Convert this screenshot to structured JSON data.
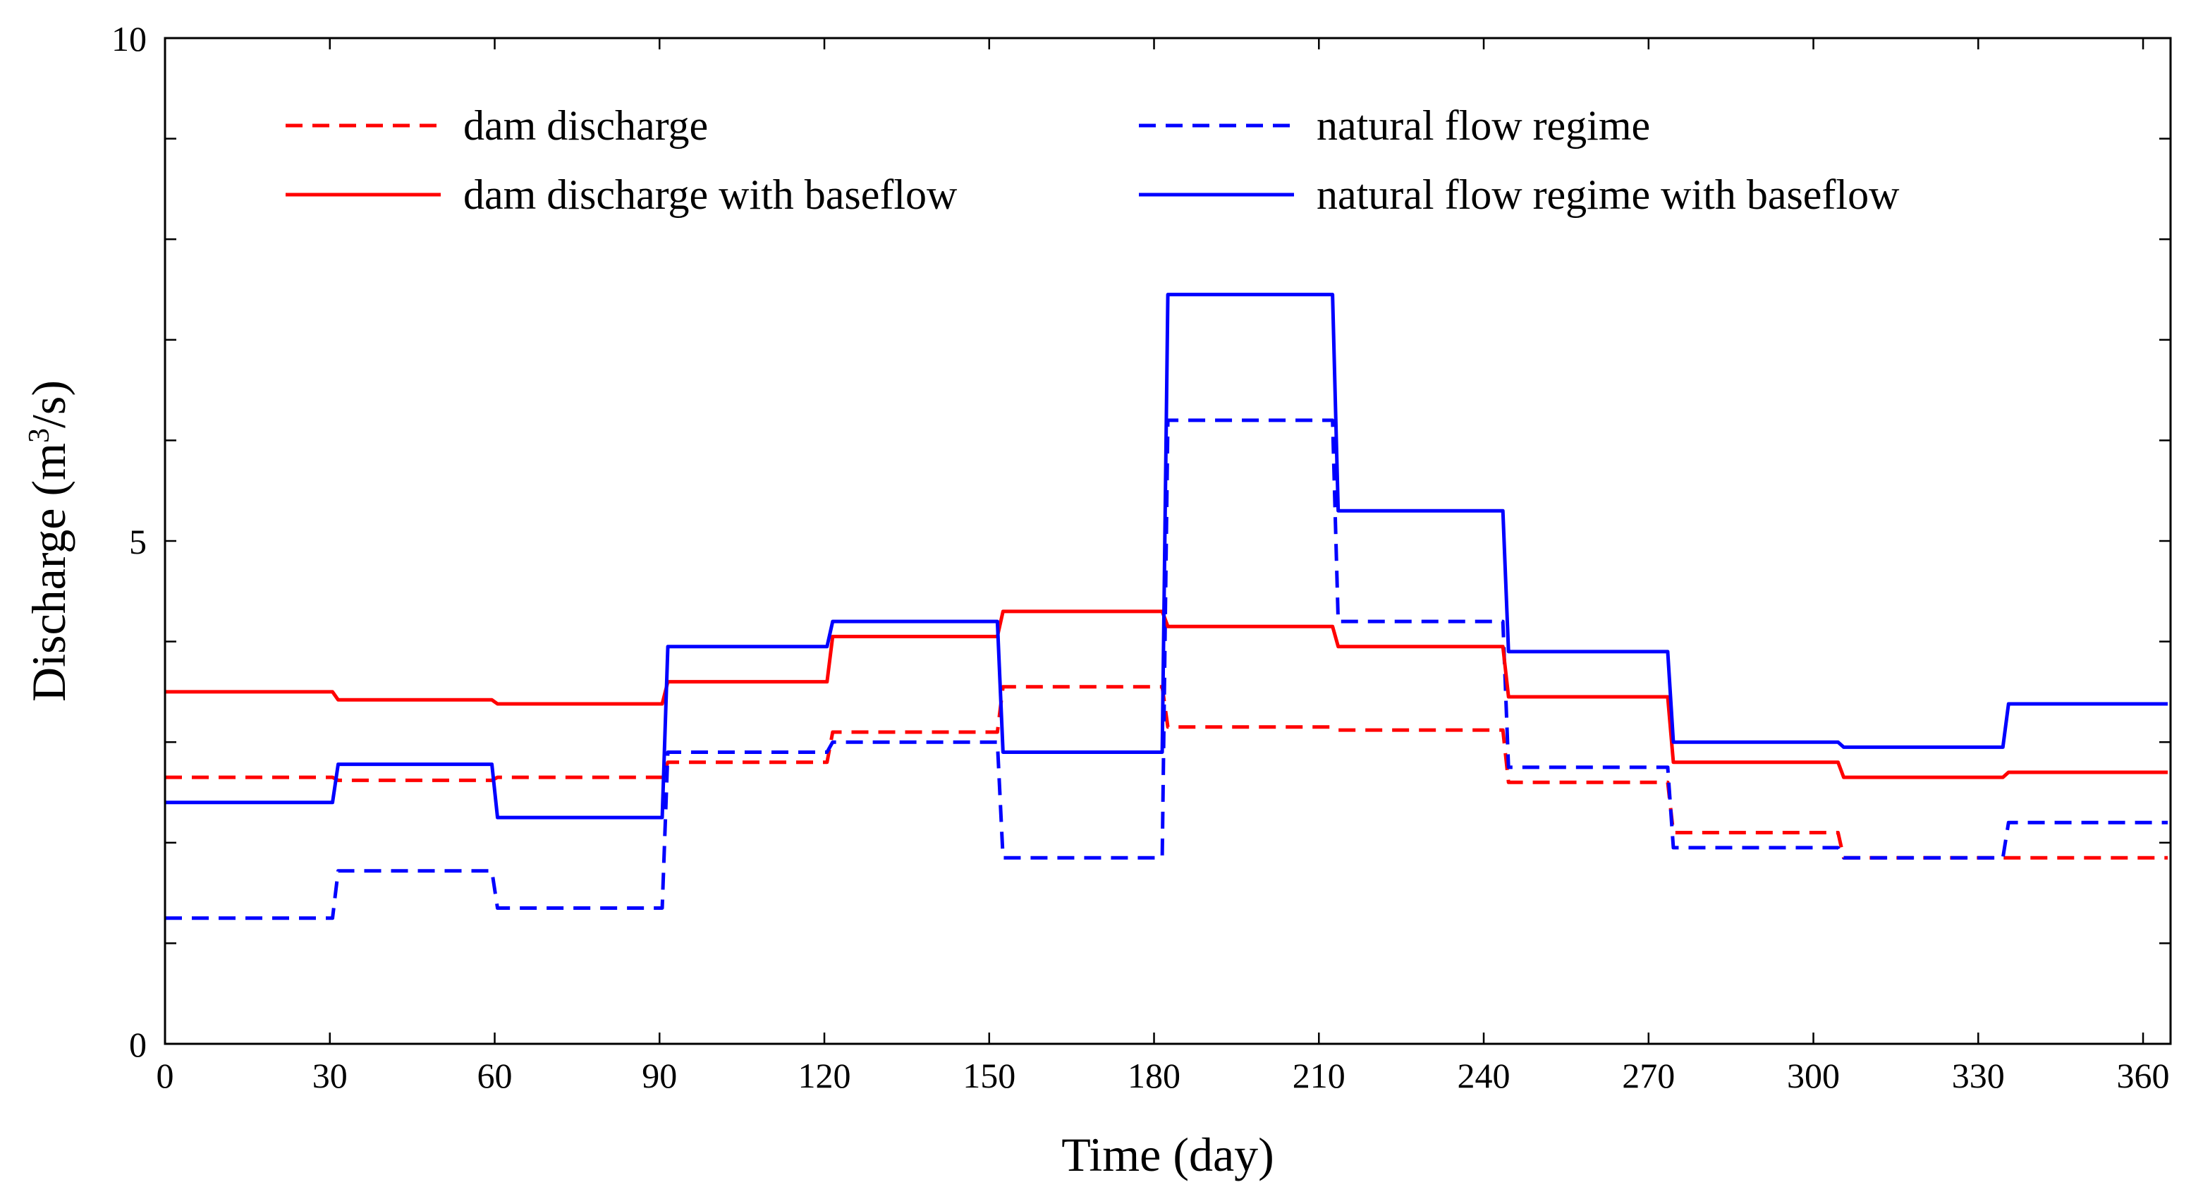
{
  "chart_data": {
    "type": "line",
    "title": "",
    "xlabel": "Time (day)",
    "ylabel_main": "Discharge (m",
    "ylabel_sup": "3",
    "ylabel_tail": "/s)",
    "xlim": [
      0,
      365
    ],
    "ylim": [
      0,
      10
    ],
    "xticks": [
      0,
      30,
      60,
      90,
      120,
      150,
      180,
      210,
      240,
      270,
      300,
      330,
      360
    ],
    "xtick_labels": [
      "0",
      "30",
      "60",
      "90",
      "120",
      "150",
      "180",
      "210",
      "240",
      "270",
      "300",
      "330",
      "360"
    ],
    "yticks": [
      0,
      5,
      10
    ],
    "ytick_labels": [
      "0",
      "5",
      "10"
    ],
    "grid": false,
    "legend_position": "top",
    "month_boundaries": [
      0,
      31,
      60,
      91,
      121,
      152,
      182,
      213,
      244,
      274,
      305,
      335,
      365
    ],
    "series": [
      {
        "name": "dam discharge",
        "color": "#ff0000",
        "style": "dashed",
        "values": [
          2.65,
          2.62,
          2.65,
          2.8,
          3.1,
          3.55,
          3.15,
          3.12,
          2.6,
          2.1,
          1.85,
          1.85
        ]
      },
      {
        "name": "natural flow regime",
        "color": "#0000ff",
        "style": "dashed",
        "values": [
          1.25,
          1.72,
          1.35,
          2.9,
          3.0,
          1.85,
          6.2,
          4.2,
          2.75,
          1.95,
          1.85,
          2.2
        ]
      },
      {
        "name": "dam discharge with baseflow",
        "color": "#ff0000",
        "style": "solid",
        "values": [
          3.5,
          3.42,
          3.38,
          3.6,
          4.05,
          4.3,
          4.15,
          3.95,
          3.45,
          2.8,
          2.65,
          2.7
        ]
      },
      {
        "name": "natural flow regime with baseflow",
        "color": "#0000ff",
        "style": "solid",
        "values": [
          2.4,
          2.78,
          2.25,
          3.95,
          4.2,
          2.9,
          7.45,
          5.3,
          3.9,
          3.0,
          2.95,
          3.38
        ]
      }
    ]
  }
}
